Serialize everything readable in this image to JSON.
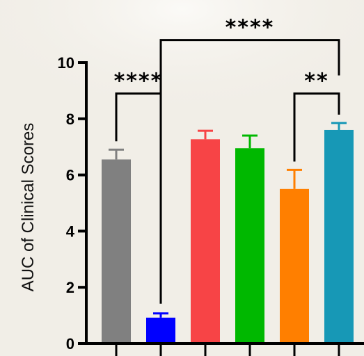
{
  "chart_data": {
    "type": "bar",
    "title": "",
    "xlabel": "",
    "ylabel": "AUC of Clinical Scores",
    "ylim": [
      0,
      10
    ],
    "yticks": [
      0,
      2,
      4,
      6,
      8,
      10
    ],
    "categories": [
      "",
      "",
      "",
      "",
      "",
      ""
    ],
    "series": [
      {
        "values": [
          6.55,
          0.92,
          7.27,
          6.95,
          5.5,
          7.6
        ],
        "errors": [
          0.35,
          0.15,
          0.3,
          0.45,
          0.68,
          0.25
        ],
        "colors": [
          "#808080",
          "#0000ff",
          "#f74446",
          "#00b800",
          "#ff7f00",
          "#1798b6"
        ]
      }
    ],
    "grid": false,
    "significance": [
      {
        "from": 0,
        "to": 1,
        "label": "****",
        "y": 8.9
      },
      {
        "from": 4,
        "to": 5,
        "label": "**",
        "y": 8.9
      },
      {
        "from": 1,
        "to": 5,
        "label": "****",
        "y": 10.8
      }
    ]
  }
}
